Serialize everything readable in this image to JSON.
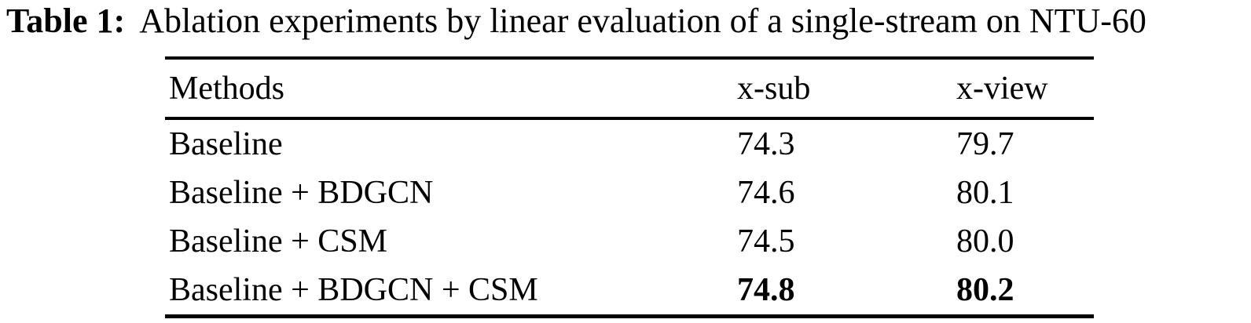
{
  "caption": {
    "label": "Table 1:",
    "text": "Ablation experiments by linear evaluation of a single-stream on NTU-60"
  },
  "table": {
    "columns": [
      "Methods",
      "x-sub",
      "x-view"
    ],
    "rows": [
      {
        "method": "Baseline",
        "x_sub": "74.3",
        "x_view": "79.7",
        "bold_values": false
      },
      {
        "method": "Baseline + BDGCN",
        "x_sub": "74.6",
        "x_view": "80.1",
        "bold_values": false
      },
      {
        "method": "Baseline + CSM",
        "x_sub": "74.5",
        "x_view": "80.0",
        "bold_values": false
      },
      {
        "method": "Baseline + BDGCN + CSM",
        "x_sub": "74.8",
        "x_view": "80.2",
        "bold_values": true
      }
    ]
  },
  "colors": {
    "text": "#000000",
    "background": "#ffffff",
    "rule": "#000000"
  }
}
